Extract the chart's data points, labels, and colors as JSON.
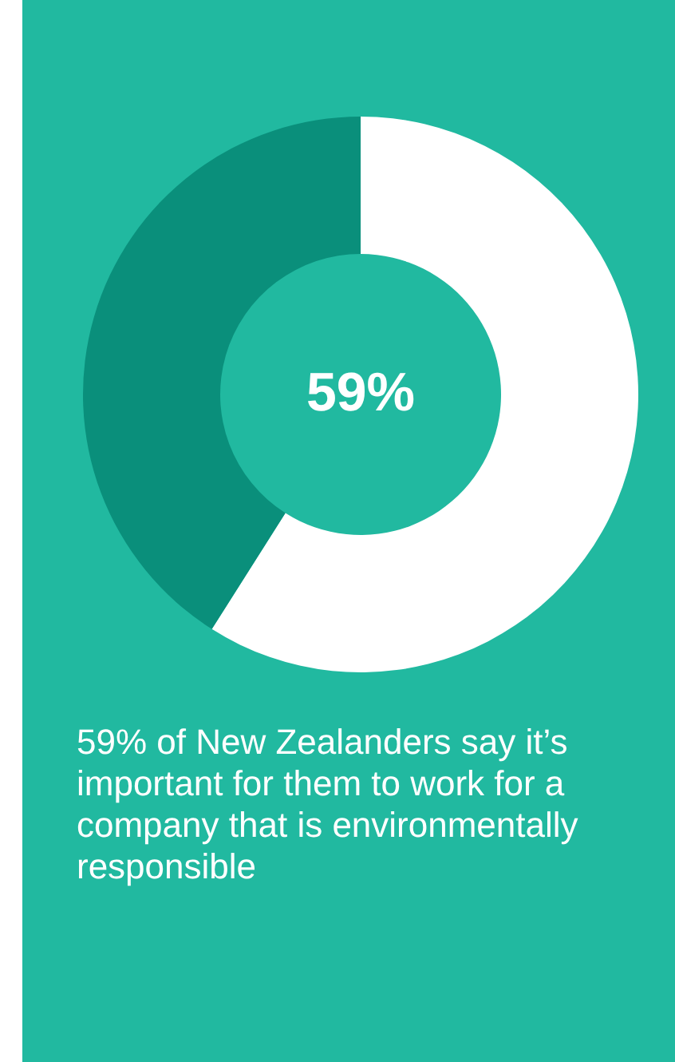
{
  "chart_data": {
    "type": "donut",
    "categories": [
      null,
      null
    ],
    "values": [
      59,
      41
    ],
    "colors": [
      "#ffffff",
      "#0a8f7b"
    ],
    "annotations": [
      "59%",
      "59% of New Zealanders say it’s important for them to work for a company that is environmentally responsible"
    ]
  }
}
